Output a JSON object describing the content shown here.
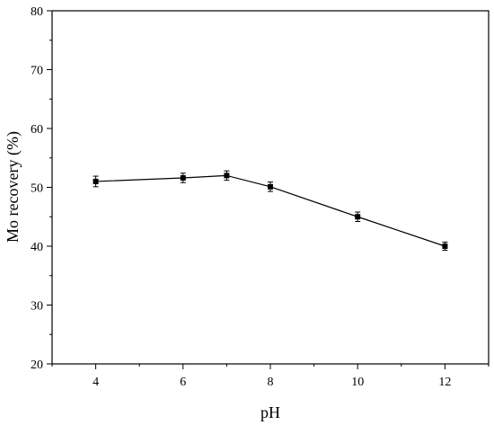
{
  "chart_data": {
    "type": "line",
    "xlabel": "pH",
    "ylabel": "Mo recovery (%)",
    "xlim": [
      3,
      13
    ],
    "ylim": [
      20,
      80
    ],
    "x_ticks": [
      4,
      6,
      8,
      10,
      12
    ],
    "y_ticks": [
      20,
      30,
      40,
      50,
      60,
      70,
      80
    ],
    "grid": false,
    "series": [
      {
        "x": [
          4,
          6,
          7,
          8,
          10,
          12
        ],
        "y": [
          51.0,
          51.6,
          52.0,
          50.1,
          45.0,
          40.0
        ],
        "error": [
          0.9,
          0.8,
          0.8,
          0.8,
          0.8,
          0.7
        ],
        "marker": "square",
        "color": "#000000"
      }
    ]
  }
}
